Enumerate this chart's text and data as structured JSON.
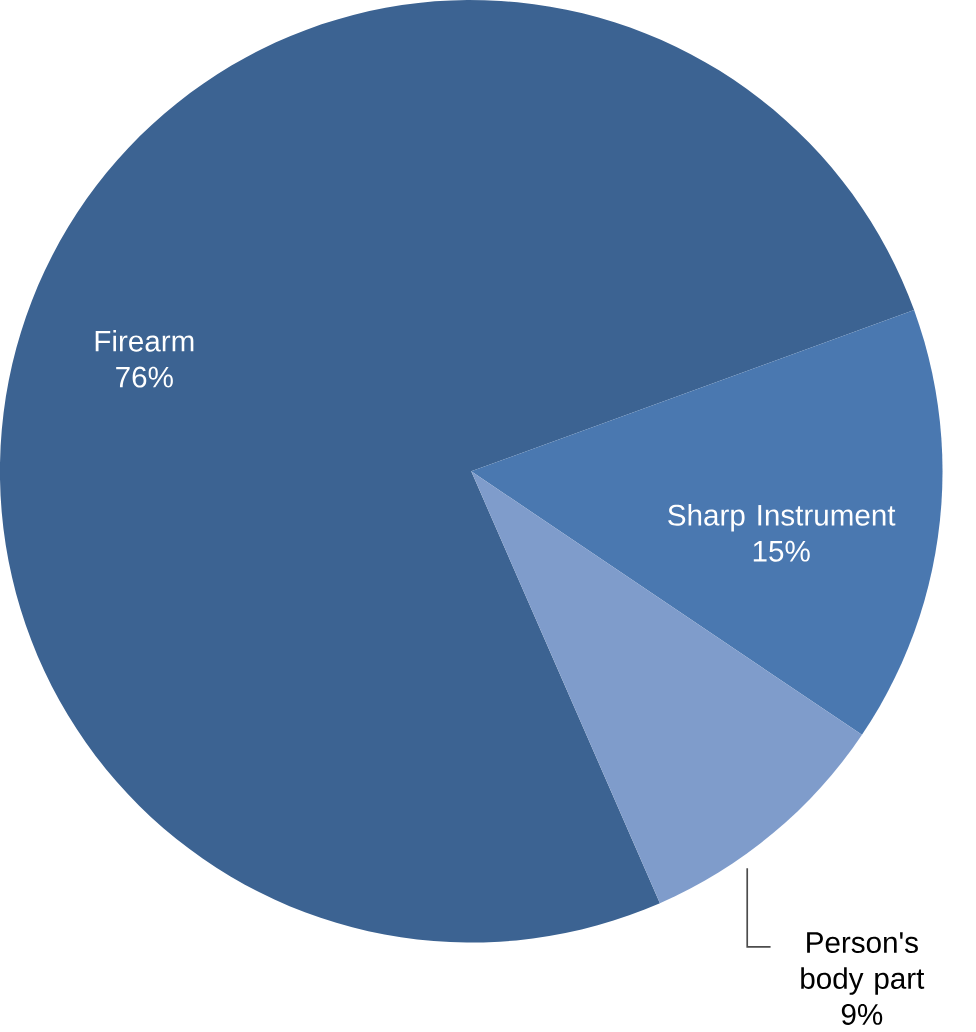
{
  "chart_data": {
    "type": "pie",
    "categories": [
      "Firearm",
      "Sharp Instrument",
      "Person's body part"
    ],
    "values": [
      76,
      15,
      9
    ],
    "value_labels": [
      "76%",
      "15%",
      "9%"
    ],
    "colors": [
      "#3c6392",
      "#4a78b0",
      "#7f9ccb"
    ]
  }
}
